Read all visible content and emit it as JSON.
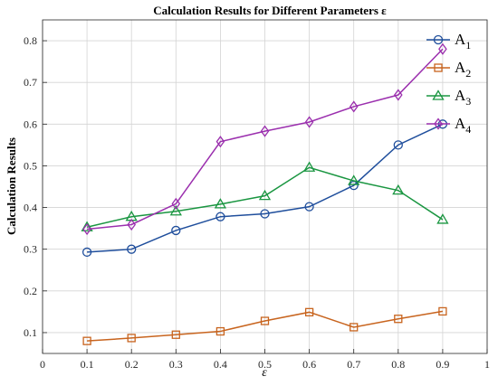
{
  "chart_data": {
    "type": "line",
    "title": "Calculation Results for Different Parameters ε",
    "xlabel": "ε",
    "ylabel": "Calculation Results",
    "xlim": [
      0,
      1
    ],
    "ylim": [
      0.05,
      0.85
    ],
    "xticks": [
      "0",
      "0.1",
      "0.2",
      "0.3",
      "0.4",
      "0.5",
      "0.6",
      "0.7",
      "0.8",
      "0.9",
      "1"
    ],
    "yticks": [
      "0.1",
      "0.2",
      "0.3",
      "0.4",
      "0.5",
      "0.6",
      "0.7",
      "0.8"
    ],
    "grid": true,
    "legend_position": "top-right",
    "x": [
      0.1,
      0.2,
      0.3,
      0.4,
      0.5,
      0.6,
      0.7,
      0.8,
      0.9
    ],
    "series": [
      {
        "name": "A1",
        "name_main": "A",
        "name_sub": "1",
        "color": "#1f4e9c",
        "marker": "circle",
        "values": [
          0.293,
          0.3,
          0.345,
          0.378,
          0.385,
          0.402,
          0.453,
          0.55,
          0.6
        ]
      },
      {
        "name": "A2",
        "name_main": "A",
        "name_sub": "2",
        "color": "#c8641e",
        "marker": "square",
        "values": [
          0.08,
          0.087,
          0.095,
          0.103,
          0.128,
          0.149,
          0.113,
          0.133,
          0.151
        ]
      },
      {
        "name": "A3",
        "name_main": "A",
        "name_sub": "3",
        "color": "#1a9641",
        "marker": "triangle",
        "values": [
          0.353,
          0.378,
          0.391,
          0.408,
          0.428,
          0.496,
          0.464,
          0.441,
          0.371
        ]
      },
      {
        "name": "A4",
        "name_main": "A",
        "name_sub": "4",
        "color": "#9b2fae",
        "marker": "diamond",
        "values": [
          0.348,
          0.359,
          0.409,
          0.558,
          0.583,
          0.605,
          0.642,
          0.67,
          0.78
        ]
      }
    ]
  }
}
